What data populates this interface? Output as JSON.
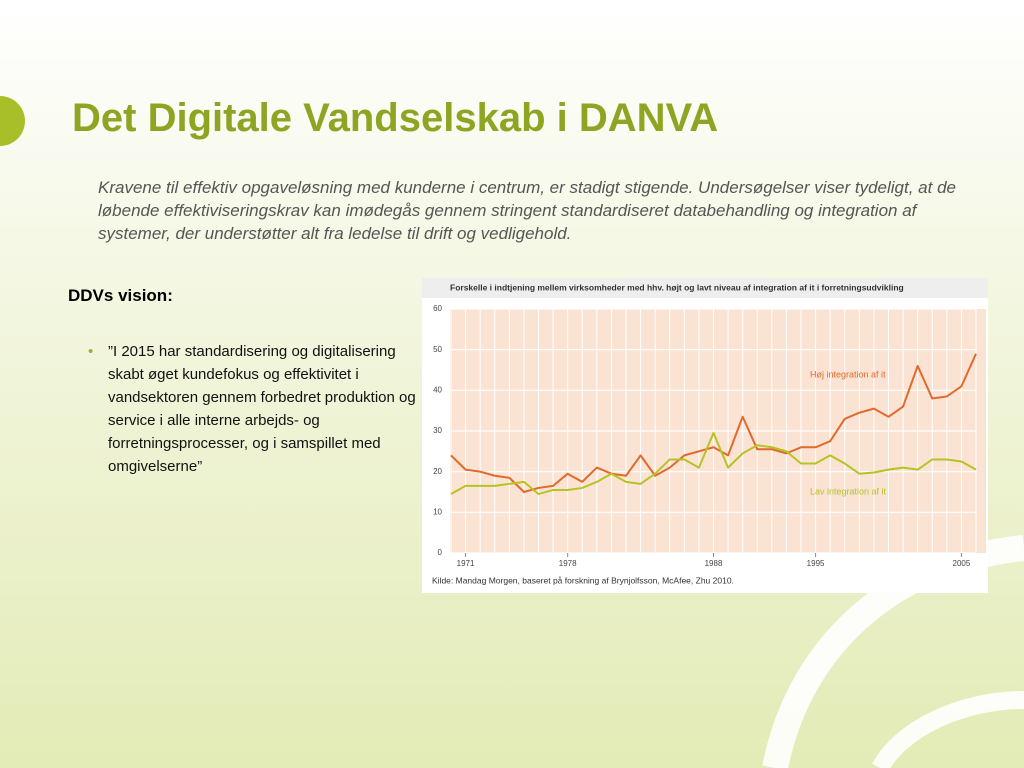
{
  "slide": {
    "title": "Det Digitale Vandselskab i DANVA",
    "intro": "Kravene til effektiv opgaveløsning med kunderne i centrum, er stadigt stigende. Undersøgelser viser tydeligt, at de løbende effektiviseringskrav kan imødegås gennem stringent standardiseret databehandling og integration af systemer, der understøtter alt fra ledelse til drift og vedligehold.",
    "heading": "DDVs vision:",
    "bullet": "”I 2015 har standardisering og digitalisering skabt øget kundefokus og effektivitet i vandsektoren gennem forbedret produktion og service i alle interne arbejds- og forretningsprocesser, og i samspillet med omgivelserne”"
  },
  "chart_data": {
    "type": "line",
    "title": "Forskelle i indtjening mellem virksomheder med hhv. højt og lavt niveau af integration af it i forretningsudvikling",
    "source": "Kilde: Mandag Morgen, baseret på forskning af Brynjolfsson, McAfee, Zhu 2010.",
    "x": [
      1970,
      1971,
      1972,
      1973,
      1974,
      1975,
      1976,
      1977,
      1978,
      1979,
      1980,
      1981,
      1982,
      1983,
      1984,
      1985,
      1986,
      1987,
      1988,
      1989,
      1990,
      1991,
      1992,
      1993,
      1994,
      1995,
      1996,
      1997,
      1998,
      1999,
      2000,
      2001,
      2002,
      2003,
      2004,
      2005,
      2006
    ],
    "series": [
      {
        "name": "Høj integration af it",
        "color": "#e06a2c",
        "values": [
          24,
          20.5,
          20,
          19,
          18.5,
          15,
          16,
          16.5,
          19.5,
          17.5,
          21,
          19.5,
          19,
          24,
          19,
          21,
          24,
          25,
          26,
          24,
          33.5,
          25.5,
          25.5,
          24.5,
          26,
          26,
          27.5,
          33,
          34.5,
          35.5,
          33.5,
          36,
          46,
          38,
          38.5,
          41,
          49
        ]
      },
      {
        "name": "Lav integration af it",
        "color": "#b5c424",
        "values": [
          14.5,
          16.5,
          16.5,
          16.5,
          17,
          17.5,
          14.5,
          15.5,
          15.5,
          16,
          17.5,
          19.5,
          17.5,
          17,
          19.5,
          23,
          23,
          21,
          29.5,
          21,
          24.5,
          26.5,
          26,
          25,
          22,
          22,
          24,
          22,
          19.5,
          19.8,
          20.5,
          21,
          20.5,
          23,
          23,
          22.5,
          20.5
        ]
      }
    ],
    "xlim": [
      1970,
      2006
    ],
    "xticks": [
      1971,
      1978,
      1988,
      1995,
      2005
    ],
    "ylim": [
      0,
      60
    ],
    "yticks": [
      0,
      10,
      20,
      30,
      40,
      50,
      60
    ],
    "grid": true
  }
}
